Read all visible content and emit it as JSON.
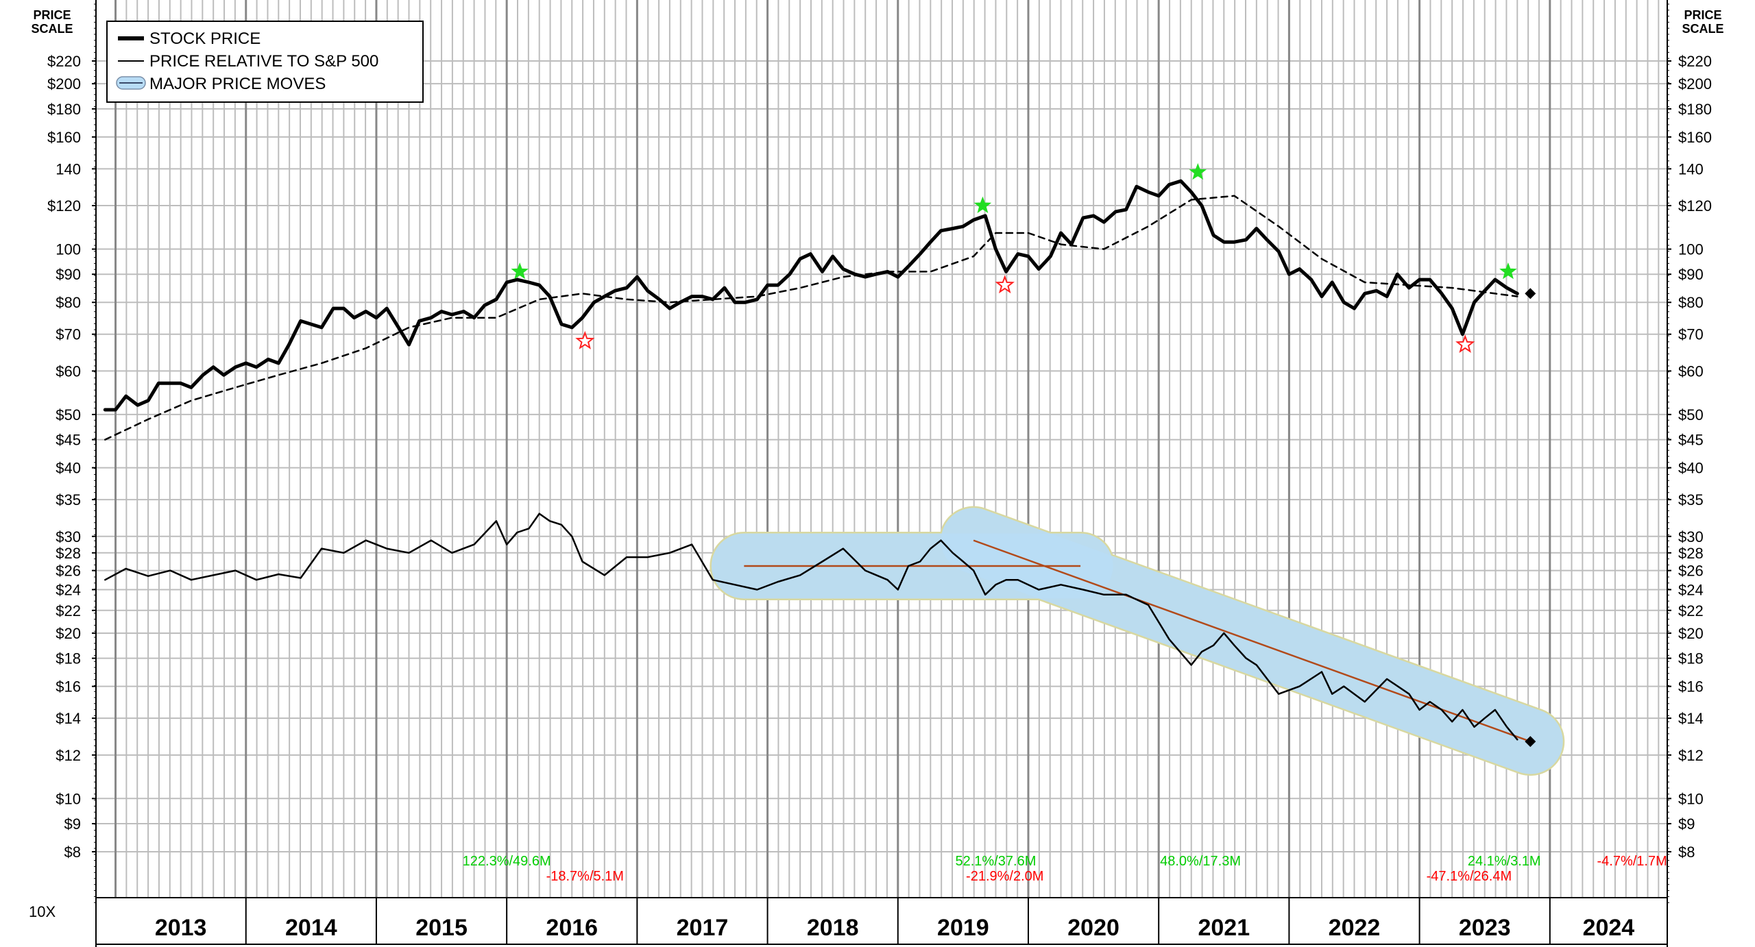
{
  "chart_data": {
    "type": "line",
    "scale": "log",
    "y_axis_title_lines": [
      "PRICE",
      "SCALE"
    ],
    "y_ticks": [
      8,
      9,
      10,
      12,
      14,
      16,
      18,
      20,
      22,
      24,
      26,
      28,
      30,
      35,
      40,
      45,
      50,
      60,
      70,
      80,
      90,
      100,
      120,
      140,
      160,
      180,
      200,
      220
    ],
    "y_tick_labels": [
      "$8",
      "$9",
      "$10",
      "$12",
      "$14",
      "$16",
      "$18",
      "$20",
      "$22",
      "$24",
      "$26",
      "$28",
      "$30",
      "$35",
      "$40",
      "$45",
      "$50",
      "$60",
      "$70",
      "$80",
      "$90",
      "100",
      "$120",
      "140",
      "$160",
      "$180",
      "$200",
      "$220"
    ],
    "y_tick_labels_right": [
      "$8",
      "$9",
      "$10",
      "$12",
      "$14",
      "$16",
      "$18",
      "$20",
      "$22",
      "$24",
      "$26",
      "$28",
      "$30",
      "$35",
      "$40",
      "$45",
      "$50",
      "$60",
      "$70",
      "$80",
      "$90",
      "100",
      "$120",
      "140",
      "$160",
      "$180",
      "$200",
      "$220"
    ],
    "x_range": [
      2012.85,
      2024.9
    ],
    "x_labels": [
      "2013",
      "2014",
      "2015",
      "2016",
      "2017",
      "2018",
      "2019",
      "2020",
      "2021",
      "2022",
      "2023",
      "2024"
    ],
    "grid": true,
    "multiplier_label": "10X",
    "legend": {
      "placement": "top-left",
      "entries": [
        "STOCK PRICE",
        "PRICE RELATIVE TO S&P 500",
        "MAJOR PRICE MOVES"
      ]
    },
    "series": [
      {
        "name": "STOCK PRICE",
        "style": "thick",
        "x": [
          2012.92,
          2013.0,
          2013.08,
          2013.17,
          2013.25,
          2013.33,
          2013.42,
          2013.5,
          2013.58,
          2013.67,
          2013.75,
          2013.83,
          2013.92,
          2014.0,
          2014.08,
          2014.17,
          2014.25,
          2014.33,
          2014.42,
          2014.5,
          2014.58,
          2014.67,
          2014.75,
          2014.83,
          2014.92,
          2015.0,
          2015.08,
          2015.17,
          2015.25,
          2015.33,
          2015.42,
          2015.5,
          2015.58,
          2015.67,
          2015.75,
          2015.83,
          2015.92,
          2016.0,
          2016.08,
          2016.17,
          2016.25,
          2016.33,
          2016.42,
          2016.5,
          2016.58,
          2016.67,
          2016.75,
          2016.83,
          2016.92,
          2017.0,
          2017.08,
          2017.17,
          2017.25,
          2017.33,
          2017.42,
          2017.5,
          2017.58,
          2017.67,
          2017.75,
          2017.83,
          2017.92,
          2018.0,
          2018.08,
          2018.17,
          2018.25,
          2018.33,
          2018.42,
          2018.5,
          2018.58,
          2018.67,
          2018.75,
          2018.83,
          2018.92,
          2019.0,
          2019.08,
          2019.17,
          2019.25,
          2019.33,
          2019.42,
          2019.5,
          2019.58,
          2019.67,
          2019.75,
          2019.83,
          2019.92,
          2020.0,
          2020.08,
          2020.17,
          2020.25,
          2020.33,
          2020.42,
          2020.5,
          2020.58,
          2020.67,
          2020.75,
          2020.83,
          2020.92,
          2021.0,
          2021.08,
          2021.17,
          2021.25,
          2021.33,
          2021.42,
          2021.5,
          2021.58,
          2021.67,
          2021.75,
          2021.83,
          2021.92,
          2022.0,
          2022.08,
          2022.17,
          2022.25,
          2022.33,
          2022.42,
          2022.5,
          2022.58,
          2022.67,
          2022.75,
          2022.83,
          2022.92,
          2023.0,
          2023.08,
          2023.17,
          2023.25,
          2023.33,
          2023.42,
          2023.5,
          2023.58,
          2023.67,
          2023.75
        ],
        "y": [
          51,
          51,
          54,
          52,
          53,
          57,
          57,
          57,
          56,
          59,
          61,
          59,
          61,
          62,
          61,
          63,
          62,
          67,
          74,
          73,
          72,
          78,
          78,
          75,
          77,
          75,
          78,
          72,
          67,
          74,
          75,
          77,
          76,
          77,
          75,
          79,
          81,
          87,
          88,
          87,
          86,
          82,
          73,
          72,
          75,
          80,
          82,
          84,
          85,
          89,
          84,
          81,
          78,
          80,
          82,
          82,
          81,
          85,
          80,
          80,
          81,
          86,
          86,
          90,
          96,
          98,
          91,
          97,
          92,
          90,
          89,
          90,
          91,
          89,
          93,
          98,
          103,
          108,
          109,
          110,
          113,
          115,
          100,
          91,
          98,
          97,
          92,
          97,
          107,
          102,
          114,
          115,
          112,
          117,
          118,
          130,
          127,
          125,
          131,
          133,
          127,
          120,
          106,
          103,
          103,
          104,
          109,
          104,
          99,
          90,
          92,
          88,
          82,
          87,
          80,
          78,
          83,
          84,
          82,
          90,
          85,
          88,
          88,
          83,
          78,
          70,
          80,
          84,
          88,
          85,
          83
        ]
      },
      {
        "name": "",
        "style": "dashed",
        "x": [
          2012.92,
          2013.25,
          2013.58,
          2013.92,
          2014.25,
          2014.58,
          2014.92,
          2015.25,
          2015.58,
          2015.92,
          2016.25,
          2016.58,
          2016.92,
          2017.25,
          2017.58,
          2017.92,
          2018.25,
          2018.58,
          2018.92,
          2019.25,
          2019.58,
          2019.75,
          2020.0,
          2020.25,
          2020.58,
          2020.92,
          2021.25,
          2021.58,
          2021.92,
          2022.25,
          2022.58,
          2022.92,
          2023.25,
          2023.58,
          2023.75
        ],
        "y": [
          45,
          49,
          53,
          56,
          59,
          62,
          66,
          72,
          75,
          75,
          81,
          83,
          81,
          80,
          81,
          82,
          85,
          89,
          91,
          91,
          97,
          107,
          107,
          102,
          100,
          110,
          123,
          125,
          110,
          96,
          87,
          86,
          85,
          83,
          82
        ]
      },
      {
        "name": "PRICE RELATIVE TO S&P 500",
        "style": "thin",
        "x": [
          2012.92,
          2013.08,
          2013.25,
          2013.42,
          2013.58,
          2013.75,
          2013.92,
          2014.08,
          2014.25,
          2014.42,
          2014.58,
          2014.75,
          2014.92,
          2015.08,
          2015.25,
          2015.42,
          2015.58,
          2015.75,
          2015.92,
          2016.0,
          2016.08,
          2016.17,
          2016.25,
          2016.33,
          2016.42,
          2016.5,
          2016.58,
          2016.75,
          2016.92,
          2017.08,
          2017.25,
          2017.42,
          2017.58,
          2017.75,
          2017.92,
          2018.08,
          2018.25,
          2018.42,
          2018.58,
          2018.75,
          2018.92,
          2019.0,
          2019.08,
          2019.17,
          2019.25,
          2019.33,
          2019.42,
          2019.5,
          2019.58,
          2019.67,
          2019.75,
          2019.83,
          2019.92,
          2020.08,
          2020.25,
          2020.42,
          2020.58,
          2020.75,
          2020.92,
          2021.08,
          2021.25,
          2021.33,
          2021.42,
          2021.5,
          2021.58,
          2021.67,
          2021.75,
          2021.92,
          2022.08,
          2022.25,
          2022.33,
          2022.42,
          2022.58,
          2022.75,
          2022.92,
          2023.0,
          2023.08,
          2023.17,
          2023.25,
          2023.33,
          2023.42,
          2023.5,
          2023.58,
          2023.67,
          2023.75
        ],
        "y": [
          25.0,
          26.2,
          25.4,
          26.0,
          25.0,
          25.5,
          26.0,
          25.0,
          25.6,
          25.2,
          28.5,
          28.0,
          29.5,
          28.5,
          28.0,
          29.5,
          28.0,
          29.0,
          32.0,
          29.0,
          30.5,
          31.0,
          33.0,
          32.0,
          31.5,
          30.0,
          27.0,
          25.5,
          27.5,
          27.5,
          28.0,
          29.0,
          25.0,
          24.5,
          24.0,
          24.8,
          25.5,
          27.0,
          28.5,
          26.0,
          25.0,
          24.0,
          26.5,
          27.0,
          28.5,
          29.5,
          28.0,
          27.0,
          26.0,
          23.5,
          24.5,
          25.0,
          25.0,
          24.0,
          24.5,
          24.0,
          23.5,
          23.5,
          22.5,
          19.5,
          17.5,
          18.5,
          19.0,
          20.0,
          19.0,
          18.0,
          17.5,
          15.5,
          16.0,
          17.0,
          15.5,
          16.0,
          15.0,
          16.5,
          15.5,
          14.5,
          15.0,
          14.5,
          13.8,
          14.5,
          13.5,
          14.0,
          14.5,
          13.5,
          12.8
        ]
      }
    ],
    "major_price_moves": [
      {
        "x": [
          2017.82,
          2020.4
        ],
        "y": [
          26.5,
          26.5
        ]
      },
      {
        "x": [
          2019.58,
          2023.85
        ],
        "y": [
          29.5,
          12.7
        ]
      }
    ],
    "end_markers": [
      {
        "x": 2023.85,
        "y": 83
      },
      {
        "x": 2023.85,
        "y": 12.7
      }
    ],
    "stars": [
      {
        "x": 2016.1,
        "y": 91,
        "type": "high"
      },
      {
        "x": 2016.6,
        "y": 68,
        "type": "low"
      },
      {
        "x": 2019.65,
        "y": 120,
        "type": "high"
      },
      {
        "x": 2019.82,
        "y": 86,
        "type": "low"
      },
      {
        "x": 2021.3,
        "y": 138,
        "type": "high"
      },
      {
        "x": 2023.35,
        "y": 67,
        "type": "low"
      },
      {
        "x": 2023.68,
        "y": 91,
        "type": "high"
      }
    ],
    "annotations": [
      {
        "text": "122.3%/49.6M",
        "x": 2016.0,
        "row": 1,
        "color": "#00cc00"
      },
      {
        "text": "-18.7%/5.1M",
        "x": 2016.6,
        "row": 2,
        "color": "#ff0000"
      },
      {
        "text": "52.1%/37.6M",
        "x": 2019.75,
        "row": 1,
        "color": "#00cc00"
      },
      {
        "text": "-21.9%/2.0M",
        "x": 2019.82,
        "row": 2,
        "color": "#ff0000"
      },
      {
        "text": "48.0%/17.3M",
        "x": 2021.32,
        "row": 1,
        "color": "#00cc00"
      },
      {
        "text": "24.1%/3.1M",
        "x": 2023.65,
        "row": 1,
        "color": "#00cc00"
      },
      {
        "text": "-47.1%/26.4M",
        "x": 2023.38,
        "row": 2,
        "color": "#ff0000"
      },
      {
        "text": "-4.7%/1.7M",
        "x": 2024.63,
        "row": 1,
        "color": "#ff0000"
      }
    ]
  }
}
